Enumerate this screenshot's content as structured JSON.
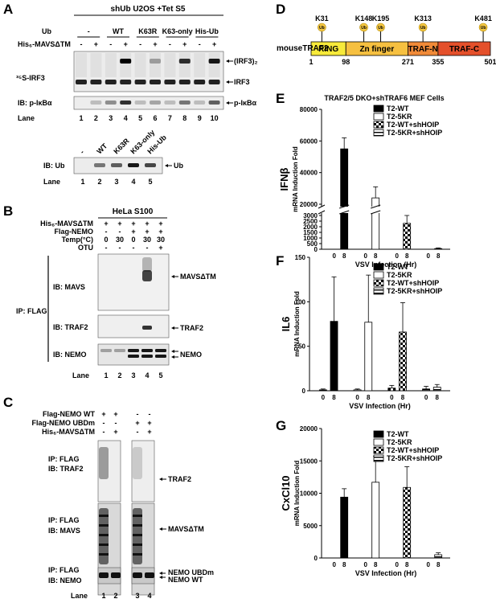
{
  "panels": {
    "A": "A",
    "B": "B",
    "C": "C",
    "D": "D",
    "E": "E",
    "F": "F",
    "G": "G"
  },
  "panelA": {
    "header": "shUb U2OS +Tet S5",
    "ub_label": "Ub",
    "ub_lanes": [
      "-",
      "WT",
      "K63R",
      "K63-only",
      "His-Ub"
    ],
    "his_label": "His₆-MAVSΔTM",
    "his_signs": [
      "-",
      "+",
      "-",
      "+",
      "-",
      "+",
      "-",
      "+",
      "-",
      "+"
    ],
    "irf3_label": "³⁵S-IRF3",
    "dimer_label": "(IRF3)₂",
    "monomer_label": "IRF3",
    "pikba_left": "IB: p-IκBα",
    "pikba_right": "p-IκBα",
    "lane_label": "Lane",
    "lanes": [
      "1",
      "2",
      "3",
      "4",
      "5",
      "6",
      "7",
      "8",
      "9",
      "10"
    ],
    "sub_lanes_top": [
      "-",
      "WT",
      "K63R",
      "K63-only",
      "His-Ub"
    ],
    "sub_ib": "IB: Ub",
    "sub_right": "Ub",
    "sub_lanes": [
      "1",
      "2",
      "3",
      "4",
      "5"
    ]
  },
  "panelB": {
    "header": "HeLa S100",
    "rows": [
      {
        "label": "His₆-MAVSΔTM",
        "vals": [
          "+",
          "+",
          "+",
          "+",
          "+"
        ]
      },
      {
        "label": "Flag-NEMO",
        "vals": [
          "-",
          "-",
          "+",
          "+",
          "+"
        ]
      },
      {
        "label": "Temp(°C)",
        "vals": [
          "0",
          "30",
          "0",
          "30",
          "30"
        ]
      },
      {
        "label": "OTU",
        "vals": [
          "-",
          "-",
          "-",
          "-",
          "+"
        ]
      }
    ],
    "ip": "IP: FLAG",
    "ib_mavs": "IB: MAVS",
    "ib_traf2": "IB: TRAF2",
    "ib_nemo": "IB: NEMO",
    "right_mavs": "MAVSΔTM",
    "right_traf2": "TRAF2",
    "right_nemo": "NEMO",
    "lane_label": "Lane",
    "lanes": [
      "1",
      "2",
      "3",
      "4",
      "5"
    ]
  },
  "panelC": {
    "rows": [
      {
        "label": "Flag-NEMO WT",
        "vals": [
          "+",
          "+",
          "-",
          "-"
        ]
      },
      {
        "label": "Flag-NEMO UBDm",
        "vals": [
          "-",
          "-",
          "+",
          "+"
        ]
      },
      {
        "label": "His₆-MAVSΔTM",
        "vals": [
          "-",
          "+",
          "-",
          "+"
        ]
      }
    ],
    "ipib1": [
      "IP: FLAG",
      "IB: TRAF2"
    ],
    "ipib2": [
      "IP: FLAG",
      "IB: MAVS"
    ],
    "ipib3": [
      "IP: FLAG",
      "IB: NEMO"
    ],
    "right_traf2": "TRAF2",
    "right_mavs": "MAVSΔTM",
    "right_nemo1": "NEMO UBDm",
    "right_nemo2": "NEMO WT",
    "lane_label": "Lane",
    "lanes": [
      "1",
      "2",
      "3",
      "4"
    ]
  },
  "panelD": {
    "protein": "mouseTRAF2",
    "domains": [
      {
        "name": "RING",
        "color": "#f7ea3a"
      },
      {
        "name": "Zn finger",
        "color": "#f6c040"
      },
      {
        "name": "TRAF-N",
        "color": "#f08a38"
      },
      {
        "name": "TRAF-C",
        "color": "#e4502b"
      }
    ],
    "positions": [
      "1",
      "98",
      "271",
      "355",
      "501"
    ],
    "sites": [
      "K31",
      "K148",
      "K195",
      "K313",
      "K481"
    ],
    "ub": "Ub"
  },
  "charts_common": {
    "legend": [
      "T2-WT",
      "T2-5KR",
      "T2-WT+shHOIP",
      "T2-5KR+shHOIP"
    ],
    "x_ticks": [
      "0",
      "8",
      "0",
      "8",
      "0",
      "8",
      "0",
      "8"
    ],
    "xlabel": "VSV Infection (Hr)",
    "ylabel_sub": "mRNA Induction Fold"
  },
  "chart_data": [
    {
      "type": "bar",
      "title": "TRAF2/5 DKO+shTRAF6 MEF Cells",
      "gene": "IFNβ",
      "xlabel": "VSV Infection (Hr)",
      "ylabel": "mRNA Induction Fold",
      "ticks_low": [
        "0",
        "500",
        "1000",
        "1500",
        "2000",
        "2500",
        "3000"
      ],
      "ticks_high": [
        "20000",
        "40000",
        "60000",
        "80000"
      ],
      "series": [
        {
          "name": "T2-WT",
          "values": [
            0,
            55000
          ],
          "err": [
            0,
            7000
          ]
        },
        {
          "name": "T2-5KR",
          "values": [
            0,
            24000
          ],
          "err": [
            0,
            7000
          ]
        },
        {
          "name": "T2-WT+shHOIP",
          "values": [
            0,
            2300
          ],
          "err": [
            0,
            700
          ]
        },
        {
          "name": "T2-5KR+shHOIP",
          "values": [
            0,
            60
          ],
          "err": [
            0,
            60
          ]
        }
      ]
    },
    {
      "type": "bar",
      "gene": "IL6",
      "xlabel": "VSV Infection (Hr)",
      "ylabel": "mRNA Induction Fold",
      "ylim": [
        0,
        150
      ],
      "ticks": [
        "0",
        "50",
        "100",
        "150"
      ],
      "series": [
        {
          "name": "T2-WT",
          "values": [
            1,
            78
          ],
          "err": [
            1,
            50
          ]
        },
        {
          "name": "T2-5KR",
          "values": [
            1,
            77
          ],
          "err": [
            1,
            53
          ]
        },
        {
          "name": "T2-WT+shHOIP",
          "values": [
            3,
            66
          ],
          "err": [
            3,
            33
          ]
        },
        {
          "name": "T2-5KR+shHOIP",
          "values": [
            2,
            4
          ],
          "err": [
            3,
            3
          ]
        }
      ]
    },
    {
      "type": "bar",
      "gene": "CxCl10",
      "xlabel": "VSV Infection (Hr)",
      "ylabel": "mRNA Induction Fold",
      "ylim": [
        0,
        20000
      ],
      "ticks": [
        "0",
        "5000",
        "10000",
        "15000",
        "20000"
      ],
      "series": [
        {
          "name": "T2-WT",
          "values": [
            0,
            9400
          ],
          "err": [
            0,
            1300
          ]
        },
        {
          "name": "T2-5KR",
          "values": [
            0,
            11700
          ],
          "err": [
            0,
            4000
          ]
        },
        {
          "name": "T2-WT+shHOIP",
          "values": [
            0,
            10900
          ],
          "err": [
            0,
            3200
          ]
        },
        {
          "name": "T2-5KR+shHOIP",
          "values": [
            0,
            500
          ],
          "err": [
            0,
            300
          ]
        }
      ]
    }
  ]
}
